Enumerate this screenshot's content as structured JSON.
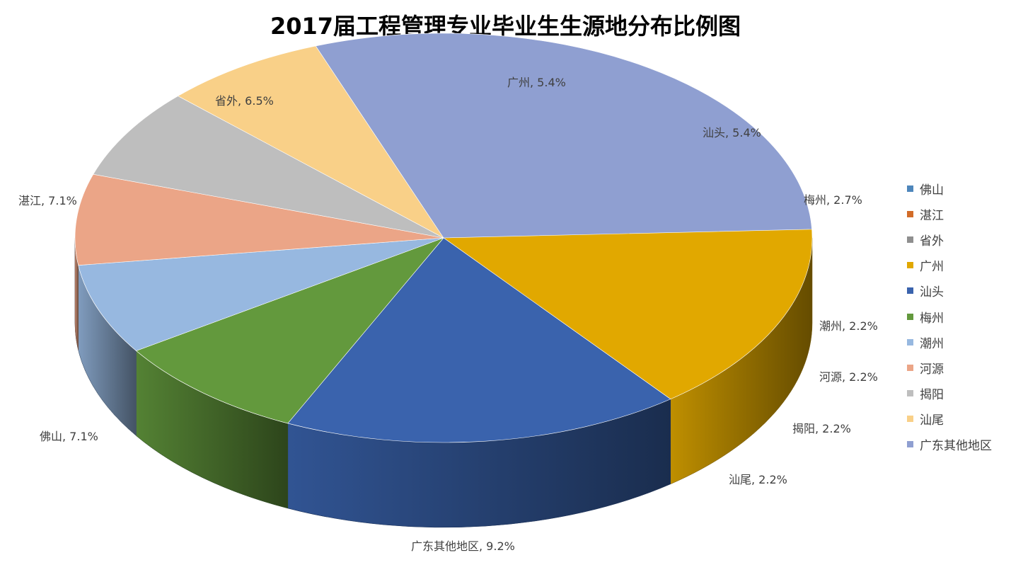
{
  "chart_data": {
    "type": "pie",
    "title": "2017届工程管理专业毕业生生源地分布比例图",
    "slices": [
      {
        "name": "佛山",
        "label": "佛山, 7.1%",
        "value": 7.1,
        "color": "#4E86BB"
      },
      {
        "name": "湛江",
        "label": "湛江, 7.1%",
        "value": 7.1,
        "color": "#D26C28"
      },
      {
        "name": "省外",
        "label": "省外, 6.5%",
        "value": 6.5,
        "color": "#8F8F8F"
      },
      {
        "name": "广州",
        "label": "广州, 5.4%",
        "value": 5.4,
        "color": "#E1A800"
      },
      {
        "name": "汕头",
        "label": "汕头, 5.4%",
        "value": 5.4,
        "color": "#3A63AD"
      },
      {
        "name": "梅州",
        "label": "梅州, 2.7%",
        "value": 2.7,
        "color": "#63993D"
      },
      {
        "name": "潮州",
        "label": "潮州, 2.2%",
        "value": 2.2,
        "color": "#97B8E0"
      },
      {
        "name": "河源",
        "label": "河源, 2.2%",
        "value": 2.2,
        "color": "#EBA587"
      },
      {
        "name": "揭阳",
        "label": "揭阳, 2.2%",
        "value": 2.2,
        "color": "#BEBEBE"
      },
      {
        "name": "汕尾",
        "label": "汕尾, 2.2%",
        "value": 2.2,
        "color": "#F9D088"
      },
      {
        "name": "广东其他地区",
        "label": "广东其他地区, 9.2%",
        "value": 9.2,
        "color": "#8F9FD1"
      }
    ],
    "legend_position": "right"
  }
}
